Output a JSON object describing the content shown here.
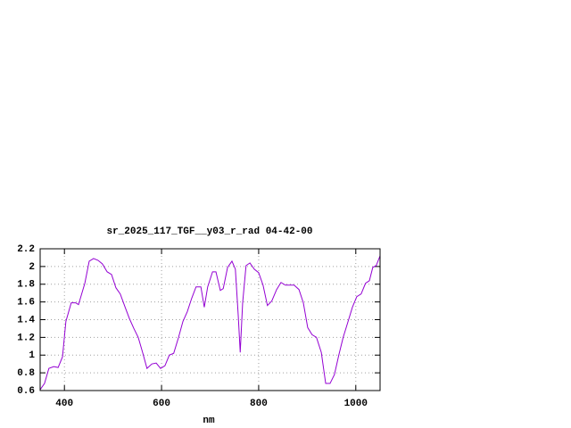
{
  "chart_data": {
    "type": "line",
    "title": "sr_2025_117_TGF__y03_r_rad 04-42-00",
    "x_label": "nm",
    "x": [
      350,
      359,
      368,
      378,
      387,
      396,
      403,
      414,
      423,
      429,
      442,
      451,
      460,
      469,
      478,
      488,
      497,
      506,
      515,
      525,
      534,
      543,
      552,
      561,
      570,
      580,
      589,
      598,
      607,
      616,
      625,
      635,
      644,
      653,
      662,
      671,
      681,
      688,
      695,
      705,
      712,
      721,
      727,
      736,
      745,
      752,
      758,
      762,
      767,
      774,
      782,
      791,
      800,
      809,
      818,
      827,
      837,
      846,
      855,
      864,
      873,
      883,
      892,
      901,
      910,
      919,
      929,
      938,
      947,
      956,
      965,
      974,
      983,
      993,
      1002,
      1011,
      1020,
      1028,
      1035,
      1042,
      1050
    ],
    "values": [
      0.61,
      0.68,
      0.85,
      0.87,
      0.86,
      0.98,
      1.38,
      1.59,
      1.59,
      1.57,
      1.81,
      2.06,
      2.09,
      2.07,
      2.03,
      1.94,
      1.91,
      1.76,
      1.69,
      1.54,
      1.41,
      1.3,
      1.2,
      1.03,
      0.85,
      0.9,
      0.91,
      0.85,
      0.88,
      1.0,
      1.02,
      1.2,
      1.38,
      1.49,
      1.64,
      1.77,
      1.77,
      1.54,
      1.77,
      1.94,
      1.94,
      1.73,
      1.75,
      1.99,
      2.06,
      1.97,
      1.44,
      1.03,
      1.59,
      2.01,
      2.04,
      1.97,
      1.93,
      1.79,
      1.56,
      1.61,
      1.74,
      1.82,
      1.79,
      1.79,
      1.79,
      1.74,
      1.59,
      1.31,
      1.23,
      1.2,
      1.03,
      0.68,
      0.68,
      0.78,
      1.0,
      1.2,
      1.36,
      1.54,
      1.66,
      1.69,
      1.81,
      1.84,
      1.99,
      2.01,
      2.12
    ],
    "color": "#9400d3",
    "xlim": [
      350,
      1050
    ],
    "xticks": [
      400,
      600,
      800,
      1000
    ],
    "ylim": [
      0.6,
      2.2
    ],
    "yticks": [
      0.6,
      0.8,
      1,
      1.2,
      1.4,
      1.6,
      1.8,
      2,
      2.2
    ],
    "grid": true
  }
}
